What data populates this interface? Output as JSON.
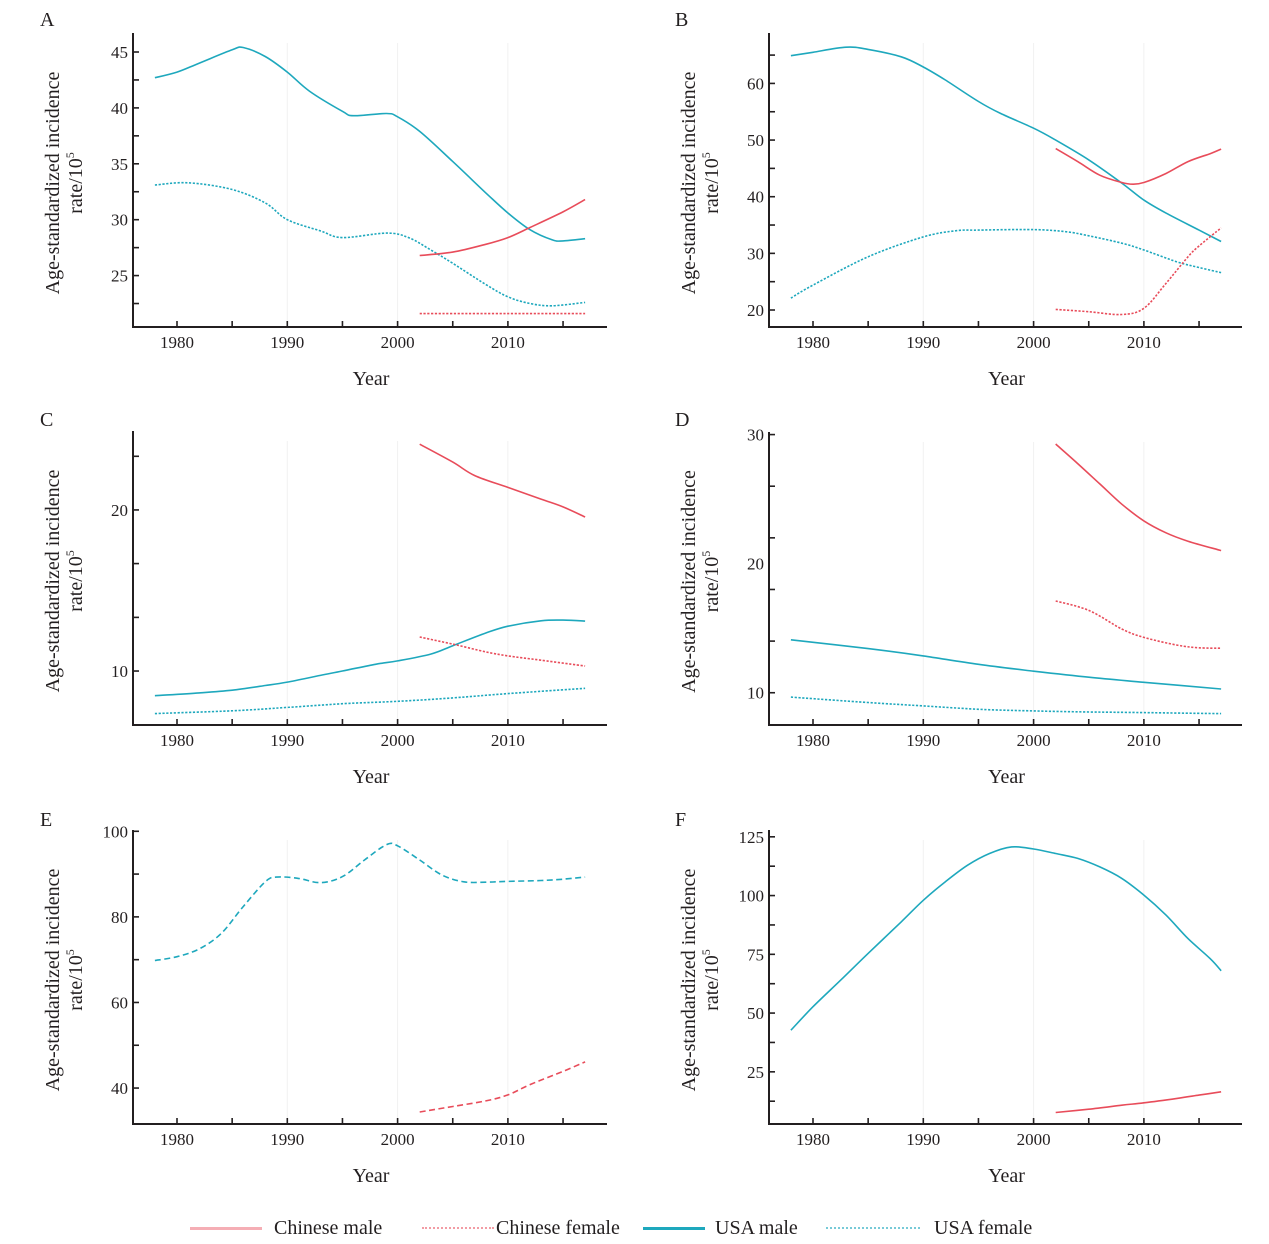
{
  "legend": [
    {
      "name": "Chinese male",
      "color": "#e84c5a",
      "style": "solid",
      "opacity": 0.45
    },
    {
      "name": "Chinese female",
      "color": "#e84c5a",
      "style": "dotted",
      "opacity": 0.55
    },
    {
      "name": "USA male",
      "color": "#1ea8bd",
      "style": "solid",
      "opacity": 1
    },
    {
      "name": "USA female",
      "color": "#1ea8bd",
      "style": "dotted",
      "opacity": 0.6
    }
  ],
  "chart_data": [
    {
      "panel": "A",
      "type": "line",
      "xlabel": "Year",
      "ylabel": "Age-standardized incidence rate/10^5",
      "ylabel_line1": "Age-standardized incidence",
      "ylabel_line2": "rate/10",
      "ylabel_sup": "5",
      "xlim": [
        1976,
        2019
      ],
      "ylim": [
        20.4,
        46.7
      ],
      "xticks": [
        1980,
        1985,
        1990,
        1995,
        2000,
        2005,
        2010,
        2015
      ],
      "xtick_labels": [
        "1980",
        "",
        "1990",
        "",
        "2000",
        "",
        "2010",
        ""
      ],
      "yticks": [
        22.5,
        25,
        27.5,
        30,
        32.5,
        35,
        37.5,
        40,
        42.5,
        45
      ],
      "ytick_labels": [
        "",
        "25",
        "",
        "30",
        "",
        "35",
        "",
        "40",
        "",
        "45"
      ],
      "grid": false,
      "series": [
        {
          "name": "USA male",
          "style": "solid",
          "x": [
            1978,
            1980,
            1982,
            1985,
            1986,
            1988,
            1990,
            1992,
            1995,
            1996,
            1999,
            2000,
            2002,
            2005,
            2008,
            2010,
            2012,
            2014,
            2015,
            2017
          ],
          "y": [
            42.7,
            43.2,
            44.0,
            45.2,
            45.4,
            44.6,
            43.2,
            41.5,
            39.7,
            39.3,
            39.5,
            39.2,
            37.9,
            35.2,
            32.4,
            30.6,
            29.1,
            28.2,
            28.1,
            28.3
          ]
        },
        {
          "name": "USA female",
          "style": "dotted",
          "x": [
            1978,
            1981,
            1985,
            1988,
            1990,
            1993,
            1995,
            1999,
            2001,
            2003,
            2005,
            2008,
            2010,
            2012,
            2014,
            2017
          ],
          "y": [
            33.1,
            33.3,
            32.7,
            31.5,
            30.0,
            29.0,
            28.4,
            28.8,
            28.4,
            27.3,
            26.1,
            24.2,
            23.1,
            22.5,
            22.3,
            22.6
          ]
        },
        {
          "name": "Chinese male",
          "style": "solid",
          "x": [
            2002,
            2005,
            2008,
            2010,
            2012,
            2015,
            2017
          ],
          "y": [
            26.8,
            27.1,
            27.8,
            28.4,
            29.3,
            30.7,
            31.8
          ]
        },
        {
          "name": "Chinese female",
          "style": "dotted",
          "x": [
            2002,
            2005,
            2010,
            2015,
            2017
          ],
          "y": [
            21.6,
            21.6,
            21.6,
            21.6,
            21.6
          ]
        }
      ]
    },
    {
      "panel": "B",
      "type": "line",
      "xlabel": "Year",
      "ylabel": "Age-standardized incidence rate/10^5",
      "ylabel_line1": "Age-standardized incidence",
      "ylabel_line2": "rate/10",
      "ylabel_sup": "5",
      "xlim": [
        1976,
        2019
      ],
      "ylim": [
        17.0,
        68.9
      ],
      "xticks": [
        1980,
        1985,
        1990,
        1995,
        2000,
        2005,
        2010,
        2015
      ],
      "xtick_labels": [
        "1980",
        "",
        "1990",
        "",
        "2000",
        "",
        "2010",
        ""
      ],
      "yticks": [
        20,
        25,
        30,
        35,
        40,
        45,
        50,
        55,
        60,
        65
      ],
      "ytick_labels": [
        "20",
        "",
        "30",
        "",
        "40",
        "",
        "50",
        "",
        "60",
        ""
      ],
      "grid": false,
      "series": [
        {
          "name": "USA male",
          "style": "solid",
          "x": [
            1978,
            1980,
            1983,
            1985,
            1988,
            1990,
            1992,
            1995,
            1997,
            2000,
            2002,
            2005,
            2008,
            2010,
            2012,
            2015,
            2017
          ],
          "y": [
            64.9,
            65.5,
            66.4,
            66.0,
            64.7,
            62.9,
            60.6,
            56.8,
            54.7,
            52.1,
            50.0,
            46.5,
            42.4,
            39.4,
            37.1,
            34.1,
            32.1
          ]
        },
        {
          "name": "USA female",
          "style": "dotted",
          "x": [
            1978,
            1980,
            1985,
            1990,
            1993,
            1995,
            2000,
            2003,
            2005,
            2008,
            2010,
            2013,
            2015,
            2017
          ],
          "y": [
            22.1,
            24.4,
            29.4,
            32.9,
            34.0,
            34.1,
            34.2,
            33.8,
            33.1,
            31.8,
            30.6,
            28.5,
            27.5,
            26.6
          ]
        },
        {
          "name": "Chinese male",
          "style": "solid",
          "x": [
            2002,
            2004,
            2006,
            2008,
            2009,
            2010,
            2012,
            2014,
            2016,
            2017
          ],
          "y": [
            48.5,
            46.2,
            43.8,
            42.5,
            42.2,
            42.5,
            44.1,
            46.2,
            47.6,
            48.4
          ]
        },
        {
          "name": "Chinese female",
          "style": "dotted",
          "x": [
            2002,
            2005,
            2008,
            2010,
            2012,
            2014,
            2015,
            2017
          ],
          "y": [
            20.1,
            19.7,
            19.2,
            20.3,
            24.7,
            29.4,
            31.3,
            34.5
          ]
        }
      ]
    },
    {
      "panel": "C",
      "type": "line",
      "xlabel": "Year",
      "ylabel": "Age-standardized incidence rate/10^5",
      "ylabel_line1": "Age-standardized incidence",
      "ylabel_line2": "rate/10",
      "ylabel_sup": "5",
      "xlim": [
        1976,
        2019
      ],
      "ylim": [
        6.65,
        24.9
      ],
      "xticks": [
        1980,
        1985,
        1990,
        1995,
        2000,
        2005,
        2010,
        2015
      ],
      "xtick_labels": [
        "1980",
        "",
        "1990",
        "",
        "2000",
        "",
        "2010",
        ""
      ],
      "yticks": [
        10,
        13.33,
        16.67,
        20,
        23.33
      ],
      "ytick_labels": [
        "10",
        "",
        "",
        "20",
        ""
      ],
      "grid": false,
      "series": [
        {
          "name": "USA male",
          "style": "solid",
          "x": [
            1978,
            1982,
            1985,
            1988,
            1990,
            1993,
            1995,
            1998,
            2000,
            2003,
            2005,
            2008,
            2010,
            2013,
            2015,
            2017
          ],
          "y": [
            8.47,
            8.64,
            8.81,
            9.1,
            9.31,
            9.73,
            10.0,
            10.42,
            10.63,
            11.05,
            11.57,
            12.36,
            12.78,
            13.12,
            13.16,
            13.1
          ]
        },
        {
          "name": "USA female",
          "style": "dotted",
          "x": [
            1978,
            1985,
            1990,
            1995,
            2000,
            2005,
            2010,
            2017
          ],
          "y": [
            7.36,
            7.53,
            7.74,
            7.97,
            8.12,
            8.33,
            8.6,
            8.93
          ]
        },
        {
          "name": "Chinese male",
          "style": "solid",
          "x": [
            2002,
            2005,
            2007,
            2010,
            2013,
            2015,
            2017
          ],
          "y": [
            24.08,
            22.97,
            22.13,
            21.4,
            20.67,
            20.19,
            19.56
          ]
        },
        {
          "name": "Chinese female",
          "style": "dotted",
          "x": [
            2002,
            2005,
            2008,
            2010,
            2013,
            2017
          ],
          "y": [
            12.11,
            11.67,
            11.19,
            10.94,
            10.67,
            10.31
          ]
        }
      ]
    },
    {
      "panel": "D",
      "type": "line",
      "xlabel": "Year",
      "ylabel": "Age-standardized incidence rate/10^5",
      "ylabel_line1": "Age-standardized incidence",
      "ylabel_line2": "rate/10",
      "ylabel_sup": "5",
      "xlim": [
        1976,
        2019
      ],
      "ylim": [
        7.5,
        30.2
      ],
      "xticks": [
        1980,
        1985,
        1990,
        1995,
        2000,
        2005,
        2010,
        2015
      ],
      "xtick_labels": [
        "1980",
        "",
        "1990",
        "",
        "2000",
        "",
        "2010",
        ""
      ],
      "yticks": [
        10,
        14,
        18,
        22,
        26,
        30
      ],
      "ytick_labels": [
        "10",
        "",
        "",
        "",
        "",
        "30"
      ],
      "extra_ylabels": [
        {
          "value": 20,
          "label": "20"
        }
      ],
      "grid": false,
      "series": [
        {
          "name": "USA male",
          "style": "solid",
          "x": [
            1978,
            1985,
            1990,
            1995,
            2000,
            2005,
            2010,
            2017
          ],
          "y": [
            14.1,
            13.42,
            12.85,
            12.2,
            11.67,
            11.2,
            10.81,
            10.29
          ]
        },
        {
          "name": "USA female",
          "style": "dotted",
          "x": [
            1978,
            1985,
            1990,
            1995,
            2000,
            2005,
            2010,
            2017
          ],
          "y": [
            9.66,
            9.24,
            8.98,
            8.72,
            8.59,
            8.51,
            8.46,
            8.38
          ]
        },
        {
          "name": "Chinese male",
          "style": "solid",
          "x": [
            2002,
            2004,
            2006,
            2008,
            2010,
            2012,
            2014,
            2017
          ],
          "y": [
            29.27,
            27.75,
            26.18,
            24.61,
            23.31,
            22.39,
            21.74,
            21.01
          ]
        },
        {
          "name": "Chinese female",
          "style": "dotted",
          "x": [
            2002,
            2005,
            2008,
            2010,
            2013,
            2015,
            2017
          ],
          "y": [
            17.11,
            16.38,
            14.94,
            14.29,
            13.69,
            13.48,
            13.45
          ]
        }
      ]
    },
    {
      "panel": "E",
      "type": "line",
      "xlabel": "Year",
      "ylabel": "Age-standardized incidence rate/10^5",
      "ylabel_line1": "Age-standardized incidence",
      "ylabel_line2": "rate/10",
      "ylabel_sup": "5",
      "xlim": [
        1976,
        2019
      ],
      "ylim": [
        31.6,
        100.3
      ],
      "xticks": [
        1980,
        1985,
        1990,
        1995,
        2000,
        2005,
        2010,
        2015
      ],
      "xtick_labels": [
        "1980",
        "",
        "1990",
        "",
        "2000",
        "",
        "2010",
        ""
      ],
      "yticks": [
        40,
        50,
        60,
        70,
        80,
        90,
        100
      ],
      "ytick_labels": [
        "40",
        "",
        "60",
        "",
        "80",
        "",
        "100"
      ],
      "grid": false,
      "series": [
        {
          "name": "USA female",
          "style": "dashed",
          "x": [
            1978,
            1980,
            1982,
            1984,
            1986,
            1988,
            1989,
            1991,
            1993,
            1995,
            1997,
            1999,
            2000,
            2002,
            2004,
            2006,
            2008,
            2010,
            2013,
            2015,
            2017
          ],
          "y": [
            69.8,
            70.7,
            72.5,
            76.1,
            82.4,
            88.2,
            89.3,
            89.0,
            88.0,
            89.4,
            93.3,
            96.9,
            96.6,
            93.3,
            89.8,
            88.2,
            88.1,
            88.3,
            88.5,
            88.8,
            89.3
          ]
        },
        {
          "name": "Chinese female",
          "style": "dashed",
          "x": [
            2002,
            2005,
            2008,
            2010,
            2012,
            2015,
            2017
          ],
          "y": [
            34.4,
            35.7,
            37.0,
            38.4,
            40.8,
            43.9,
            46.1
          ]
        }
      ]
    },
    {
      "panel": "F",
      "type": "line",
      "xlabel": "Year",
      "ylabel": "Age-standardized incidence rate/10^5",
      "ylabel_line1": "Age-standardized incidence",
      "ylabel_line2": "rate/10",
      "ylabel_sup": "5",
      "xlim": [
        1976,
        2019
      ],
      "ylim": [
        2.8,
        127.9
      ],
      "xticks": [
        1980,
        1985,
        1990,
        1995,
        2000,
        2005,
        2010,
        2015
      ],
      "xtick_labels": [
        "1980",
        "",
        "1990",
        "",
        "2000",
        "",
        "2010",
        ""
      ],
      "yticks": [
        12.5,
        25,
        37.5,
        50,
        62.5,
        75,
        87.5,
        100,
        112.5,
        125
      ],
      "ytick_labels": [
        "",
        "25",
        "",
        "50",
        "",
        "75",
        "",
        "100",
        "",
        "125"
      ],
      "grid": false,
      "series": [
        {
          "name": "USA male",
          "style": "solid",
          "x": [
            1978,
            1980,
            1982.5,
            1985,
            1988,
            1990,
            1992,
            1994,
            1996,
            1998,
            2000,
            2002,
            2004,
            2006,
            2008,
            2010,
            2012,
            2014,
            2016,
            2017
          ],
          "y": [
            42.7,
            52.7,
            64.0,
            75.4,
            88.8,
            98.0,
            105.9,
            112.9,
            117.9,
            120.7,
            119.8,
            117.9,
            115.8,
            112.2,
            107.3,
            100.2,
            91.7,
            81.7,
            73.2,
            68.0
          ]
        },
        {
          "name": "Chinese male",
          "style": "solid",
          "x": [
            2002,
            2005,
            2008,
            2010,
            2013,
            2015,
            2017
          ],
          "y": [
            7.7,
            9.1,
            10.8,
            11.8,
            13.7,
            15.1,
            16.5
          ]
        }
      ]
    }
  ]
}
